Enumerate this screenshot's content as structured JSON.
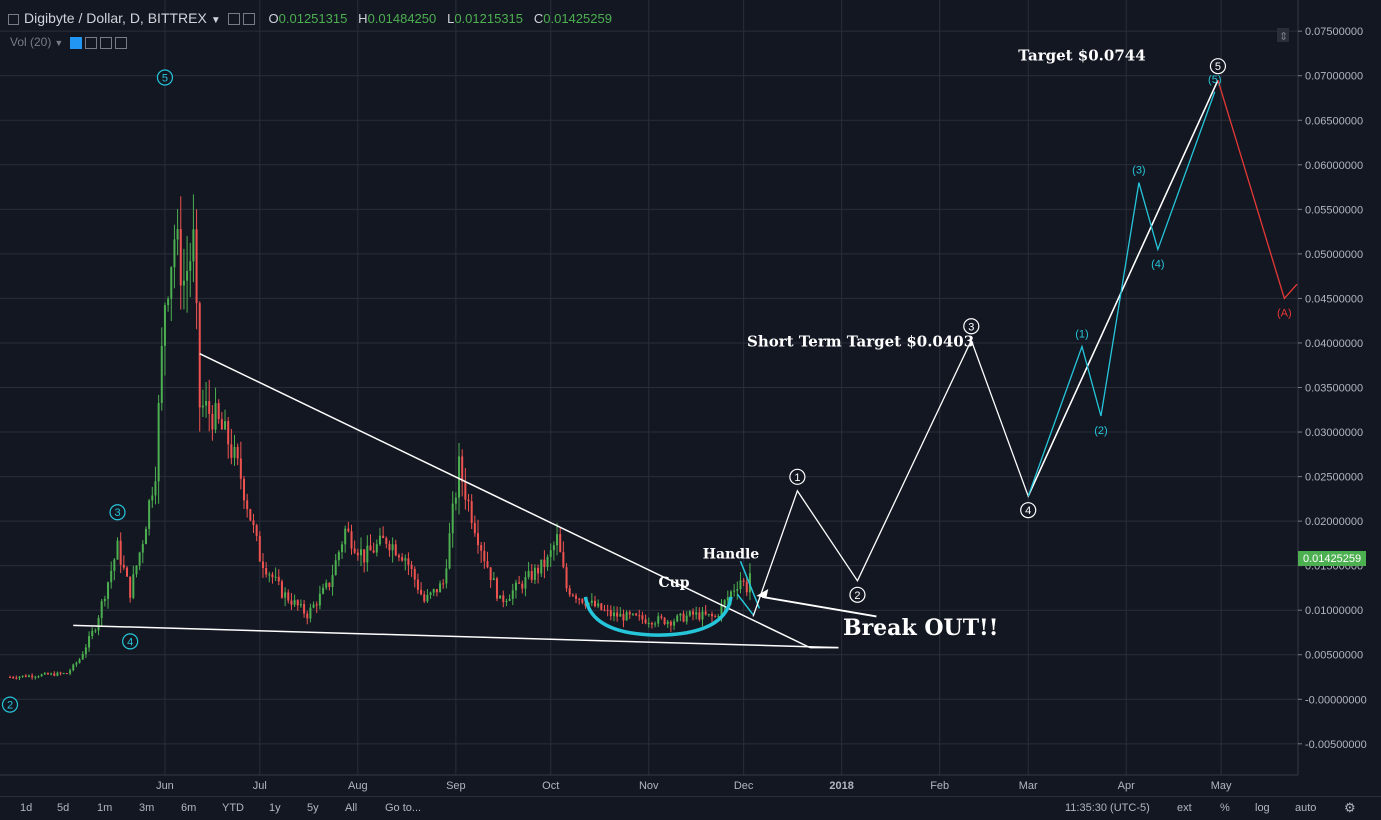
{
  "header": {
    "symbol": "Digibyte / Dollar, D, BITTREX",
    "open_label": "O",
    "open": "0.01251315",
    "high_label": "H",
    "high": "0.01484250",
    "low_label": "L",
    "low": "0.01215315",
    "close_label": "C",
    "close": "0.01425259",
    "volume": "Vol (20)"
  },
  "bottom_bar": {
    "ranges": [
      "1d",
      "5d",
      "1m",
      "3m",
      "6m",
      "YTD",
      "1y",
      "5y",
      "All",
      "Go to..."
    ],
    "time": "11:35:30 (UTC-5)",
    "ext": "ext",
    "percent": "%",
    "log": "log",
    "auto": "auto"
  },
  "colors": {
    "background": "#131722",
    "up": "#4caf50",
    "down": "#ef5350",
    "cyan": "#26c6da",
    "white": "#ffffff",
    "red": "#e53935"
  },
  "chart_data": {
    "type": "candlestick",
    "ylim": [
      -0.0085,
      0.0785
    ],
    "y_ticks": [
      "0.07500000",
      "0.07000000",
      "0.06500000",
      "0.06000000",
      "0.05500000",
      "0.05000000",
      "0.04500000",
      "0.04000000",
      "0.03500000",
      "0.03000000",
      "0.02500000",
      "0.02000000",
      "0.01500000",
      "0.01000000",
      "0.00500000",
      "-0.00000000",
      "-0.00500000"
    ],
    "y_tick_values": [
      0.075,
      0.07,
      0.065,
      0.06,
      0.055,
      0.05,
      0.045,
      0.04,
      0.035,
      0.03,
      0.025,
      0.02,
      0.015,
      0.01,
      0.005,
      0,
      -0.005
    ],
    "x_ticks": [
      {
        "label": "Jun",
        "date": "2017-06-01"
      },
      {
        "label": "Jul",
        "date": "2017-07-01"
      },
      {
        "label": "Aug",
        "date": "2017-08-01"
      },
      {
        "label": "Sep",
        "date": "2017-09-01"
      },
      {
        "label": "Oct",
        "date": "2017-10-01"
      },
      {
        "label": "Nov",
        "date": "2017-11-01"
      },
      {
        "label": "Dec",
        "date": "2017-12-01"
      },
      {
        "label": "2018",
        "date": "2018-01-01"
      },
      {
        "label": "Feb",
        "date": "2018-02-01"
      },
      {
        "label": "Mar",
        "date": "2018-03-01"
      },
      {
        "label": "Apr",
        "date": "2018-04-01"
      },
      {
        "label": "May",
        "date": "2018-05-01"
      }
    ],
    "x_range": [
      "2017-04-13",
      "2018-05-25"
    ],
    "price_label": "0.01425259",
    "anchors": [
      [
        "2017-04-13",
        0.0025
      ],
      [
        "2017-05-01",
        0.0029
      ],
      [
        "2017-05-05",
        0.0045
      ],
      [
        "2017-05-10",
        0.0082
      ],
      [
        "2017-05-17",
        0.017
      ],
      [
        "2017-05-21",
        0.012
      ],
      [
        "2017-05-25",
        0.018
      ],
      [
        "2017-05-29",
        0.026
      ],
      [
        "2017-06-01",
        0.045
      ],
      [
        "2017-06-04",
        0.052
      ],
      [
        "2017-06-07",
        0.047
      ],
      [
        "2017-06-10",
        0.051
      ],
      [
        "2017-06-12",
        0.033
      ],
      [
        "2017-06-16",
        0.032
      ],
      [
        "2017-06-21",
        0.029
      ],
      [
        "2017-06-25",
        0.025
      ],
      [
        "2017-07-01",
        0.016
      ],
      [
        "2017-07-08",
        0.012
      ],
      [
        "2017-07-16",
        0.0095
      ],
      [
        "2017-07-23",
        0.013
      ],
      [
        "2017-07-28",
        0.019
      ],
      [
        "2017-08-03",
        0.016
      ],
      [
        "2017-08-10",
        0.018
      ],
      [
        "2017-08-16",
        0.016
      ],
      [
        "2017-08-22",
        0.011
      ],
      [
        "2017-08-28",
        0.013
      ],
      [
        "2017-09-02",
        0.026
      ],
      [
        "2017-09-05",
        0.022
      ],
      [
        "2017-09-10",
        0.016
      ],
      [
        "2017-09-15",
        0.011
      ],
      [
        "2017-09-22",
        0.013
      ],
      [
        "2017-09-30",
        0.0155
      ],
      [
        "2017-10-03",
        0.018
      ],
      [
        "2017-10-06",
        0.0125
      ],
      [
        "2017-10-12",
        0.011
      ],
      [
        "2017-10-20",
        0.0095
      ],
      [
        "2017-10-30",
        0.009
      ],
      [
        "2017-11-08",
        0.0088
      ],
      [
        "2017-11-15",
        0.0095
      ],
      [
        "2017-11-22",
        0.0092
      ],
      [
        "2017-11-27",
        0.012
      ],
      [
        "2017-11-30",
        0.0135
      ],
      [
        "2017-12-02",
        0.0125
      ],
      [
        "2017-12-03",
        0.0142
      ]
    ],
    "wave_labels": [
      {
        "text": "2",
        "date": "2017-04-13",
        "y": -0.0006,
        "color": "cyan"
      },
      {
        "text": "3",
        "date": "2017-05-17",
        "y": 0.021,
        "color": "cyan"
      },
      {
        "text": "4",
        "date": "2017-05-21",
        "y": 0.0065,
        "color": "cyan"
      },
      {
        "text": "5",
        "date": "2017-06-01",
        "y": 0.0698,
        "color": "cyan"
      }
    ],
    "projection_white": [
      {
        "date": "2017-12-04",
        "y": 0.0093,
        "label": ""
      },
      {
        "date": "2017-12-18",
        "y": 0.0234,
        "label": "1"
      },
      {
        "date": "2018-01-06",
        "y": 0.0133,
        "label": "2"
      },
      {
        "date": "2018-02-11",
        "y": 0.0403,
        "label": "3"
      },
      {
        "date": "2018-03-01",
        "y": 0.0228,
        "label": "4"
      },
      {
        "date": "2018-04-30",
        "y": 0.0695,
        "label": "5"
      }
    ],
    "projection_cyan": [
      {
        "date": "2018-03-01",
        "y": 0.0228,
        "label": ""
      },
      {
        "date": "2018-03-18",
        "y": 0.0396,
        "label": "(1)"
      },
      {
        "date": "2018-03-24",
        "y": 0.0318,
        "label": "(2)"
      },
      {
        "date": "2018-04-05",
        "y": 0.058,
        "label": "(3)"
      },
      {
        "date": "2018-04-11",
        "y": 0.0505,
        "label": "(4)"
      },
      {
        "date": "2018-04-29",
        "y": 0.0682,
        "label": "(5)"
      }
    ],
    "projection_red": [
      {
        "date": "2018-04-30",
        "y": 0.0695,
        "label": ""
      },
      {
        "date": "2018-05-21",
        "y": 0.045,
        "label": "(A)"
      },
      {
        "date": "2018-05-25",
        "y": 0.0466,
        "label": ""
      }
    ],
    "trendlines": [
      {
        "from": [
          "2017-06-12",
          0.0388
        ],
        "to": [
          "2017-12-22",
          0.0058
        ],
        "color": "white"
      },
      {
        "from": [
          "2017-05-03",
          0.0083
        ],
        "to": [
          "2017-12-31",
          0.0058
        ],
        "color": "white"
      },
      {
        "from": [
          "2017-12-22",
          0.0058
        ],
        "to": [
          "2017-12-31",
          0.0058
        ],
        "color": "white"
      },
      {
        "from": [
          "2017-03-01",
          0.0748
        ],
        "to": [
          "2018-04-30",
          0.0695
        ],
        "color": "white"
      }
    ],
    "annotations": [
      {
        "text": "Target $0.0744",
        "date": "2018-03-18",
        "y": 0.0717,
        "size": 15
      },
      {
        "text": "Short Term Target $0.0403",
        "date": "2018-01-07",
        "y": 0.0396,
        "size": 15
      },
      {
        "text": "Cup",
        "date": "2017-11-09",
        "y": 0.0126,
        "size": 14
      },
      {
        "text": "Handle",
        "date": "2017-11-27",
        "y": 0.0158,
        "size": 14
      },
      {
        "text": "Break OUT!!",
        "date": "2018-01-26",
        "y": 0.0072,
        "size": 22
      }
    ]
  }
}
